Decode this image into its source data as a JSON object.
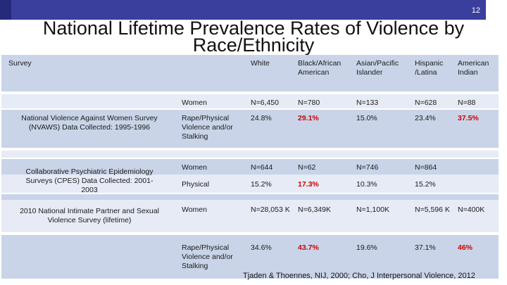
{
  "slide": {
    "number": "12",
    "title_line1": "National Lifetime Prevalence Rates of Violence by",
    "title_line2": "Race/Ethnicity",
    "citation": "Tjaden & Thoennes, NIJ, 2000; Cho, J Interpersonal Violence, 2012"
  },
  "table": {
    "header_survey": "Survey",
    "columns": [
      "White",
      "Black/African American",
      "Asian/Pacific Islander",
      "Hispanic /Latina",
      "American Indian"
    ],
    "surveys": [
      "National Violence Against Women Survey (NVAWS) Data Collected: 1995-1996",
      "Collaborative Psychiatric Epidemiology Surveys (CPES) Data Collected: 2001-2003",
      "2010 National Intimate Partner and Sexual Violence Survey (lifetime)"
    ],
    "rows": [
      {
        "label": "Women",
        "values": [
          "N=6,450",
          "N=780",
          "N=133",
          "N=628",
          "N=88"
        ]
      },
      {
        "label": "Rape/Physical Violence and/or Stalking",
        "values": [
          "24.8%",
          "29.1%",
          "15.0%",
          "23.4%",
          "37.5%"
        ]
      },
      {
        "label": "Women",
        "values": [
          "N=644",
          "N=62",
          "N=746",
          "N=864",
          ""
        ]
      },
      {
        "label": "Physical",
        "values": [
          "15.2%",
          "17.3%",
          "10.3%",
          "15.2%",
          ""
        ]
      },
      {
        "label": "Women",
        "values": [
          "N=28,053 K",
          "N=6,349K",
          "N=1,100K",
          "N=5,596 K",
          "N=400K"
        ]
      },
      {
        "label": "Rape/Physical Violence and/or Stalking",
        "values": [
          "34.6%",
          "43.7%",
          "19.6%",
          "37.1%",
          "46%"
        ]
      }
    ],
    "highlight_color": "#cc0000"
  }
}
